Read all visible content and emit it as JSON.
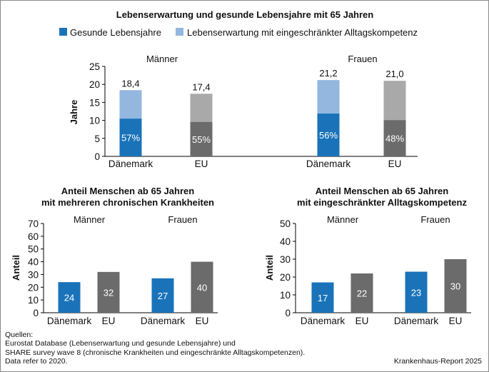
{
  "colors": {
    "blue": "#1a73b9",
    "light_blue": "#93b7df",
    "dark_gray": "#6b6b6b",
    "light_gray": "#a9a9a9",
    "axis": "#000000"
  },
  "chart_data": [
    {
      "id": "top",
      "type": "bar",
      "stacked": true,
      "title": "Lebenserwartung und gesunde Lebensjahre mit 65 Jahren",
      "legend": [
        "Gesunde Lebensjahre",
        "Lebenserwartung mit eingeschränkter Alltagskompetenz"
      ],
      "ylabel": "Jahre",
      "ylim": [
        0,
        25
      ],
      "yticks": [
        0,
        5,
        10,
        15,
        20,
        25
      ],
      "groups": [
        {
          "label": "Männer",
          "categories": [
            "Dänemark",
            "EU"
          ],
          "healthy": [
            10.5,
            9.6
          ],
          "limited": [
            7.9,
            7.8
          ],
          "totals": [
            "18,4",
            "17,4"
          ],
          "healthy_pct": [
            "57%",
            "55%"
          ]
        },
        {
          "label": "Frauen",
          "categories": [
            "Dänemark",
            "EU"
          ],
          "healthy": [
            11.9,
            10.1
          ],
          "limited": [
            9.3,
            10.9
          ],
          "totals": [
            "21,2",
            "21,0"
          ],
          "healthy_pct": [
            "56%",
            "48%"
          ]
        }
      ]
    },
    {
      "id": "left",
      "type": "bar",
      "title": [
        "Anteil Menschen ab 65 Jahren",
        "mit mehreren chronischen Krankheiten"
      ],
      "ylabel": "Anteil",
      "ylim": [
        0,
        70
      ],
      "yticks": [
        0,
        10,
        20,
        30,
        40,
        50,
        60,
        70
      ],
      "groups": [
        {
          "label": "Männer",
          "categories": [
            "Dänemark",
            "EU"
          ],
          "values": [
            24,
            32
          ]
        },
        {
          "label": "Frauen",
          "categories": [
            "Dänemark",
            "EU"
          ],
          "values": [
            27,
            40
          ]
        }
      ]
    },
    {
      "id": "right",
      "type": "bar",
      "title": [
        "Anteil Menschen ab 65 Jahren",
        "mit eingeschränkter Alltagskompetenz"
      ],
      "ylabel": "Anteil",
      "ylim": [
        0,
        50
      ],
      "yticks": [
        0,
        10,
        20,
        30,
        40,
        50
      ],
      "groups": [
        {
          "label": "Männer",
          "categories": [
            "Dänemark",
            "EU"
          ],
          "values": [
            17,
            22
          ]
        },
        {
          "label": "Frauen",
          "categories": [
            "Dänemark",
            "EU"
          ],
          "values": [
            23,
            30
          ]
        }
      ]
    }
  ],
  "footer": {
    "lines": [
      "Quellen:",
      "Eurostat Database (Lebenserwartung und gesunde Lebensjahre) und",
      "SHARE survey wave 8 (chronische Krankheiten und eingeschränkte Alltagskompetenzen).",
      "Data refer to 2020."
    ],
    "source": "Krankenhaus-Report 2025"
  }
}
